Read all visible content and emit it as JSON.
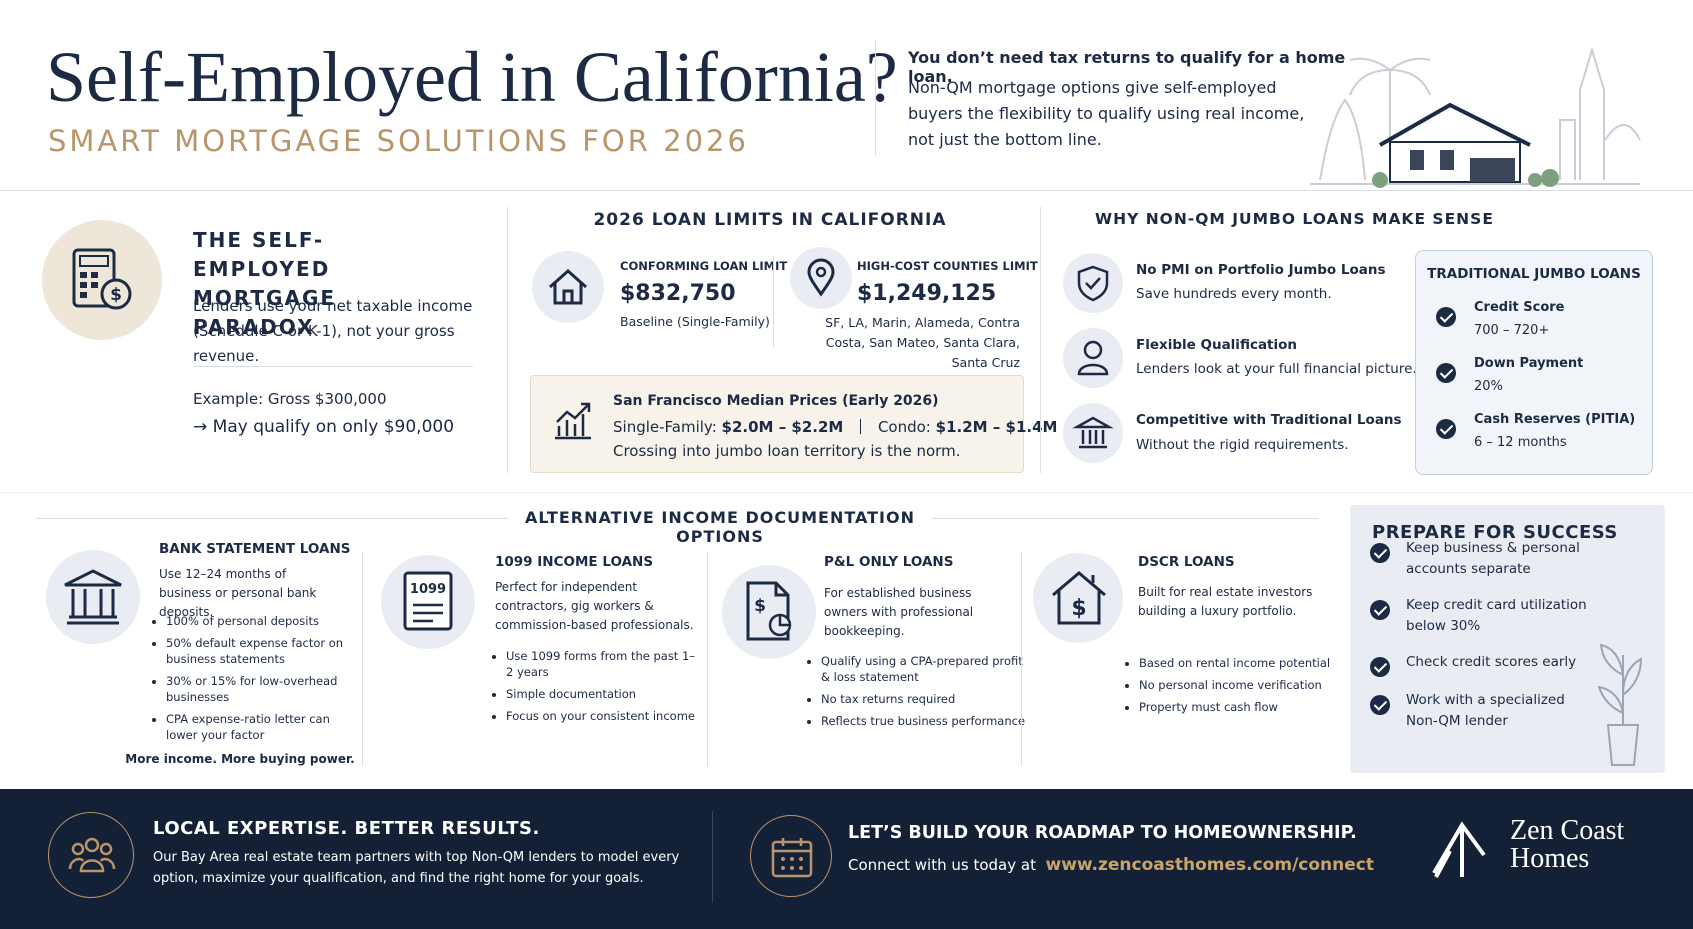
{
  "header": {
    "title": "Self-Employed in California?",
    "subtitle": "SMART MORTGAGE SOLUTIONS FOR 2026",
    "intro_lead": "You don’t need tax returns to qualify for a home loan.",
    "intro_body": "Non-QM mortgage options give self-employed buyers the flexibility to qualify using real income, not just the bottom line."
  },
  "paradox": {
    "title": "THE SELF-EMPLOYED MORTGAGE PARADOX",
    "body": "Lenders use your net taxable income (Schedule C or K-1), not your gross revenue.",
    "example": "Example: Gross $300,000",
    "result": "→ May qualify on only $90,000"
  },
  "loan_limits": {
    "title": "2026 LOAN LIMITS IN CALIFORNIA",
    "conforming": {
      "label": "CONFORMING LOAN LIMIT",
      "amount": "$832,750",
      "note": "Baseline (Single-Family)"
    },
    "high_cost": {
      "label": "HIGH-COST COUNTIES LIMIT",
      "amount": "$1,249,125",
      "note": "SF, LA, Marin, Alameda, Contra Costa, San Mateo, Santa Clara, Santa Cruz"
    },
    "sf_prices": {
      "title": "San Francisco Median Prices (Early 2026)",
      "single_family_label": "Single-Family:",
      "single_family": "$2.0M – $2.2M",
      "condo_label": "Condo:",
      "condo": "$1.2M – $1.4M",
      "note": "Crossing into jumbo loan territory is the norm."
    }
  },
  "why": {
    "title": "WHY NON-QM JUMBO LOANS MAKE SENSE",
    "items": [
      {
        "title": "No PMI on Portfolio Jumbo Loans",
        "body": "Save hundreds every month."
      },
      {
        "title": "Flexible Qualification",
        "body": "Lenders look at your full financial picture."
      },
      {
        "title": "Competitive with Traditional Loans",
        "body": "Without the rigid requirements."
      }
    ],
    "traditional": {
      "title": "TRADITIONAL JUMBO LOANS",
      "items": [
        {
          "label": "Credit Score",
          "value": "700 – 720+"
        },
        {
          "label": "Down Payment",
          "value": "20%"
        },
        {
          "label": "Cash Reserves (PITIA)",
          "value": "6 – 12 months"
        }
      ]
    }
  },
  "alternatives": {
    "title": "ALTERNATIVE INCOME DOCUMENTATION OPTIONS",
    "options": [
      {
        "title": "BANK STATEMENT LOANS",
        "body": "Use 12–24 months of business or personal bank deposits.",
        "bullets": [
          "100% of personal deposits",
          "50% default expense factor on business statements",
          "30% or 15% for low-overhead businesses",
          "CPA expense-ratio letter can lower your factor"
        ]
      },
      {
        "title": "1099 INCOME LOANS",
        "icon_label": "1099",
        "body": "Perfect for independent contractors, gig workers & commission-based professionals.",
        "bullets": [
          "Use 1099 forms from the past 1–2 years",
          "Simple documentation",
          "Focus on your consistent income"
        ]
      },
      {
        "title": "P&L ONLY LOANS",
        "body": "For established business owners with professional bookkeeping.",
        "bullets": [
          "Qualify using a CPA-prepared profit & loss statement",
          "No tax returns required",
          "Reflects true business performance"
        ]
      },
      {
        "title": "DSCR LOANS",
        "body": "Built for real estate investors building a luxury portfolio.",
        "bullets": [
          "Based on rental income potential",
          "No personal income verification",
          "Property must cash flow"
        ]
      }
    ],
    "tagline": "More income. More buying power."
  },
  "prepare": {
    "title": "PREPARE FOR SUCCESS",
    "items": [
      "Keep business & personal accounts separate",
      "Keep credit card utilization below 30%",
      "Check credit scores early",
      "Work with a specialized Non-QM lender"
    ]
  },
  "footer": {
    "expertise_title": "LOCAL EXPERTISE. BETTER RESULTS.",
    "expertise_body": "Our Bay Area real estate team partners with top Non-QM lenders to model every option, maximize your qualification, and find the right home for your goals.",
    "roadmap_title": "LET’S BUILD YOUR ROADMAP TO HOMEOWNERSHIP.",
    "roadmap_lead": "Connect with us today at",
    "url": "www.zencoasthomes.com/connect",
    "brand": [
      "Zen Coast",
      "Homes"
    ]
  }
}
